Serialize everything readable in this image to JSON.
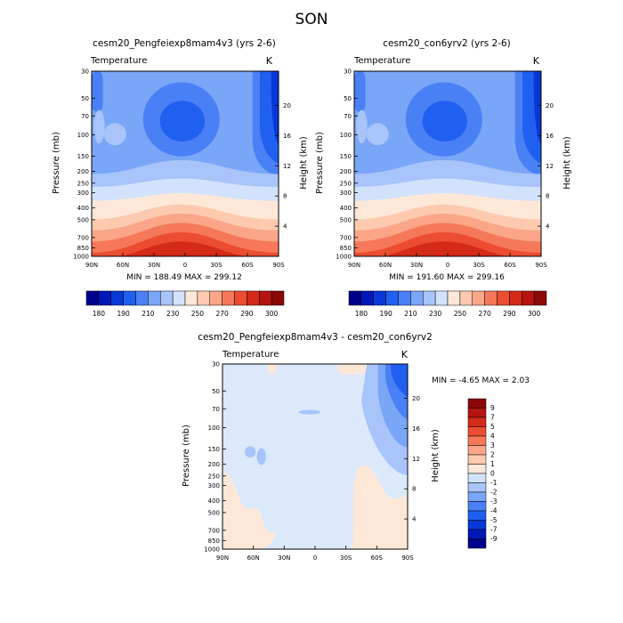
{
  "figure": {
    "title": "SON"
  },
  "chart_data": [
    {
      "type": "heatmap",
      "title": "cesm20_Pengfeiexp8mam4v3 (yrs 2-6)",
      "left_label": "Temperature",
      "right_label": "K",
      "xlabel": "",
      "ylabel": "Pressure (mb)",
      "y2label": "Height (km)",
      "x_ticks": [
        "90N",
        "60N",
        "30N",
        "0",
        "30S",
        "60S",
        "90S"
      ],
      "y_ticks": [
        "30",
        "50",
        "70",
        "100",
        "150",
        "200",
        "250",
        "300",
        "400",
        "500",
        "700",
        "850",
        "1000"
      ],
      "y2_ticks": [
        "20",
        "16",
        "12",
        "8",
        "4"
      ],
      "stats": "MIN = 188.49   MAX = 299.12",
      "colorbar_labels": [
        "180",
        "190",
        "210",
        "230",
        "250",
        "270",
        "290",
        "300"
      ],
      "ylim_mb": [
        1000,
        30
      ],
      "scale": "log pressure"
    },
    {
      "type": "heatmap",
      "title": "cesm20_con6yrv2 (yrs 2-6)",
      "left_label": "Temperature",
      "right_label": "K",
      "xlabel": "",
      "ylabel": "Pressure (mb)",
      "y2label": "Height (km)",
      "x_ticks": [
        "90N",
        "60N",
        "30N",
        "0",
        "30S",
        "60S",
        "90S"
      ],
      "y_ticks": [
        "30",
        "50",
        "70",
        "100",
        "150",
        "200",
        "250",
        "300",
        "400",
        "500",
        "700",
        "850",
        "1000"
      ],
      "y2_ticks": [
        "20",
        "16",
        "12",
        "8",
        "4"
      ],
      "stats": "MIN = 191.60   MAX = 299.16",
      "colorbar_labels": [
        "180",
        "190",
        "210",
        "230",
        "250",
        "270",
        "290",
        "300"
      ],
      "ylim_mb": [
        1000,
        30
      ],
      "scale": "log pressure"
    },
    {
      "type": "heatmap",
      "title": "cesm20_Pengfeiexp8mam4v3 - cesm20_con6yrv2",
      "left_label": "Temperature",
      "right_label": "K",
      "xlabel": "",
      "ylabel": "Pressure (mb)",
      "y2label": "Height (km)",
      "x_ticks": [
        "90N",
        "60N",
        "30N",
        "0",
        "30S",
        "60S",
        "90S"
      ],
      "y_ticks": [
        "30",
        "50",
        "70",
        "100",
        "150",
        "200",
        "250",
        "300",
        "400",
        "500",
        "700",
        "850",
        "1000"
      ],
      "y2_ticks": [
        "20",
        "16",
        "12",
        "8",
        "4"
      ],
      "stats": "MIN =  -4.65   MAX =   2.03",
      "colorbar_labels": [
        "9",
        "7",
        "5",
        "4",
        "3",
        "2",
        "1",
        "0",
        "-1",
        "-2",
        "-3",
        "-4",
        "-5",
        "-7",
        "-9"
      ],
      "ylim_mb": [
        1000,
        30
      ],
      "scale": "log pressure"
    }
  ],
  "palette": {
    "temp": [
      "#00008c",
      "#0018b8",
      "#0838d8",
      "#2060f0",
      "#4a80f5",
      "#7aa6f7",
      "#a8c4fa",
      "#d2e2fc",
      "#fde8d8",
      "#fdcab0",
      "#fba688",
      "#f6785a",
      "#ec4d30",
      "#d52a18",
      "#b51410",
      "#8c0808"
    ],
    "diff": [
      "#8c0808",
      "#b51410",
      "#d52a18",
      "#ec4d30",
      "#f6785a",
      "#fba688",
      "#fdcab0",
      "#fde8d8",
      "#d2e2fc",
      "#a8c4fa",
      "#7aa6f7",
      "#4a80f5",
      "#2060f0",
      "#0838d8",
      "#0018b8",
      "#00008c"
    ]
  }
}
